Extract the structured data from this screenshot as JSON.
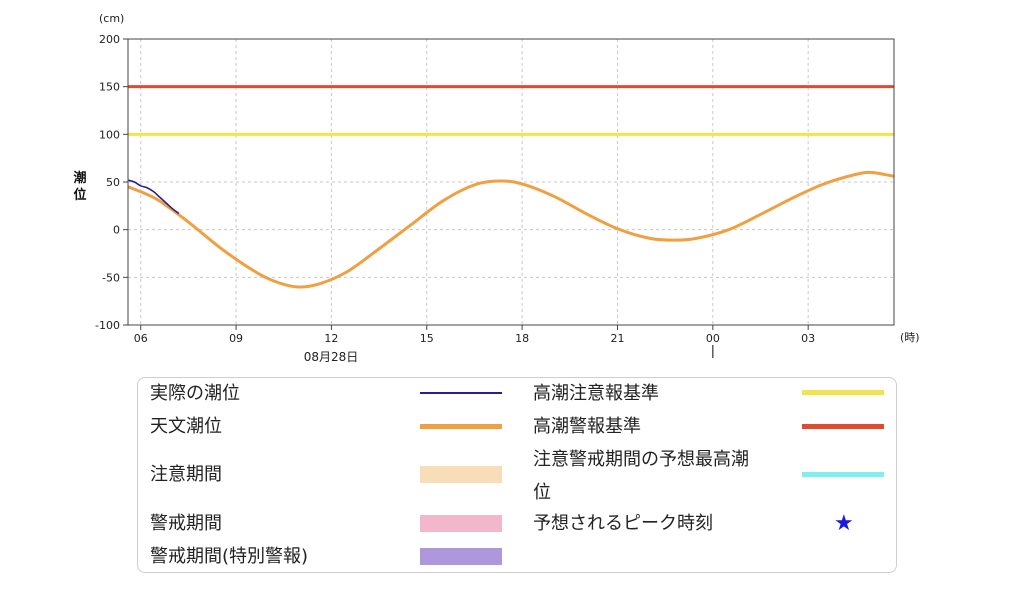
{
  "chart_data": {
    "type": "line",
    "ylabel": "潮位",
    "yunit": "(cm)",
    "xunit": "(時)",
    "date_label": "08月28日",
    "ylim": [
      -100,
      200
    ],
    "yticks": [
      -100,
      -50,
      0,
      50,
      100,
      150,
      200
    ],
    "xlim_hours": [
      5.6,
      29.7
    ],
    "xticks": [
      {
        "hour": 6,
        "label": "06"
      },
      {
        "hour": 9,
        "label": "09"
      },
      {
        "hour": 12,
        "label": "12"
      },
      {
        "hour": 15,
        "label": "15"
      },
      {
        "hour": 18,
        "label": "18"
      },
      {
        "hour": 21,
        "label": "21"
      },
      {
        "hour": 24,
        "label": "00"
      },
      {
        "hour": 27,
        "label": "03"
      }
    ],
    "grid": true,
    "series": [
      {
        "name": "実際の潮位",
        "color": "#2a1f8f",
        "x": [
          5.6,
          5.8,
          6.0,
          6.2,
          6.4,
          6.6,
          6.8,
          7.0,
          7.2
        ],
        "y": [
          52,
          50,
          46,
          44,
          40,
          34,
          28,
          22,
          17
        ]
      },
      {
        "name": "天文潮位",
        "color": "#f0a040",
        "x": [
          5.6,
          6.5,
          7.5,
          8.5,
          9.5,
          10.2,
          10.9,
          11.6,
          12.5,
          13.5,
          14.5,
          15.5,
          16.5,
          17.3,
          18.0,
          19.0,
          20.0,
          21.0,
          22.0,
          22.8,
          23.5,
          24.5,
          25.5,
          26.5,
          27.5,
          28.5,
          29.0,
          29.7
        ],
        "y": [
          45,
          32,
          8,
          -19,
          -42,
          -54,
          -60,
          -57,
          -44,
          -20,
          5,
          30,
          47,
          51,
          48,
          35,
          17,
          1,
          -9,
          -11,
          -9,
          0,
          16,
          33,
          48,
          58,
          60,
          56
        ]
      },
      {
        "name": "高潮注意報基準",
        "color": "#f2e44a",
        "x": [
          5.6,
          29.7
        ],
        "y": [
          100,
          100
        ]
      },
      {
        "name": "高潮警報基準",
        "color": "#e14a2e",
        "x": [
          5.6,
          29.7
        ],
        "y": [
          150,
          150
        ]
      }
    ]
  },
  "legend": {
    "items": [
      {
        "label": "実際の潮位",
        "color": "#2a1f8f",
        "kind": "line"
      },
      {
        "label": "天文潮位",
        "color": "#f0a040",
        "kind": "line"
      },
      {
        "label": "注意期間",
        "color": "#f7ddb8",
        "kind": "box"
      },
      {
        "label": "警戒期間",
        "color": "#f3b7cb",
        "kind": "box"
      },
      {
        "label": "警戒期間(特別警報)",
        "color": "#ad98dc",
        "kind": "box"
      },
      {
        "label": "高潮注意報基準",
        "color": "#f2e44a",
        "kind": "line"
      },
      {
        "label": "高潮警報基準",
        "color": "#e14a2e",
        "kind": "line"
      },
      {
        "label": "注意警戒期間の予想最高潮",
        "label_line2": "位",
        "color": "#7ff0f2",
        "kind": "line"
      },
      {
        "label": "予想されるピーク時刻",
        "color": "#1a1ad9",
        "kind": "star",
        "symbol": "★"
      }
    ]
  }
}
